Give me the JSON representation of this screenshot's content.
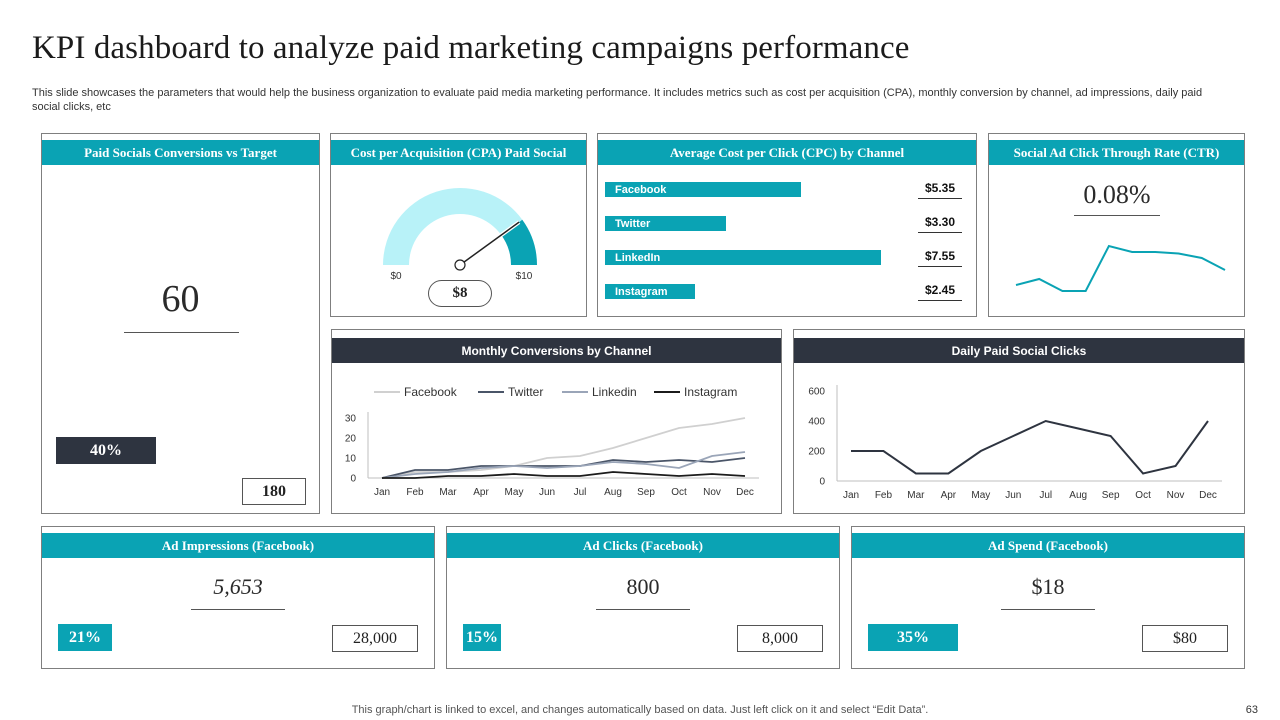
{
  "title": "KPI dashboard to analyze paid marketing campaigns performance",
  "subtitle": "This slide showcases the parameters that would help the business organization to evaluate paid media marketing performance. It includes metrics such as cost per acquisition (CPA), monthly conversion by channel, ad impressions, daily paid social clicks, etc",
  "colors": {
    "accent": "#0aa3b4",
    "dark": "#2e3440",
    "gauge_light": "#b8f2f8"
  },
  "conversions": {
    "title": "Paid Socials Conversions vs Target",
    "value": "60",
    "percent": "40%",
    "target": "180"
  },
  "cpa": {
    "title": "Cost per Acquisition (CPA) Paid Social",
    "min_label": "$0",
    "max_label": "$10",
    "value_label": "$8",
    "value": 8,
    "min": 0,
    "max": 10
  },
  "cpc": {
    "title": "Average Cost per Click (CPC) by Channel",
    "channels": [
      {
        "name": "Facebook",
        "value_label": "$5.35",
        "value": 5.35
      },
      {
        "name": "Twitter",
        "value_label": "$3.30",
        "value": 3.3
      },
      {
        "name": "LinkedIn",
        "value_label": "$7.55",
        "value": 7.55
      },
      {
        "name": "Instagram",
        "value_label": "$2.45",
        "value": 2.45
      }
    ]
  },
  "ctr": {
    "title": "Social Ad Click Through Rate (CTR)",
    "value": "0.08%"
  },
  "metrics": [
    {
      "title": "Ad Impressions (Facebook)",
      "value": "5,653",
      "percent": "21%",
      "target": "28,000"
    },
    {
      "title": "Ad Clicks (Facebook)",
      "value": "800",
      "percent": "15%",
      "target": "8,000"
    },
    {
      "title": "Ad Spend (Facebook)",
      "value": "$18",
      "percent": "35%",
      "target": "$80"
    }
  ],
  "footer": "This graph/chart is linked to excel,  and changes automatically based on data. Just left click on it and select “Edit Data”.",
  "page_number": "63",
  "chart_data": [
    {
      "type": "line",
      "title": "Monthly Conversions by Channel",
      "categories": [
        "Jan",
        "Feb",
        "Mar",
        "Apr",
        "May",
        "Jun",
        "Jul",
        "Aug",
        "Sep",
        "Oct",
        "Nov",
        "Dec"
      ],
      "yticks": [
        0,
        10,
        20,
        30
      ],
      "ylim": [
        0,
        30
      ],
      "legend": "top",
      "series": [
        {
          "name": "Facebook",
          "color": "#d0d0d0",
          "values": [
            0,
            3,
            3,
            4,
            6,
            10,
            11,
            15,
            20,
            25,
            27,
            30
          ]
        },
        {
          "name": "Twitter",
          "color": "#4a5568",
          "values": [
            0,
            4,
            4,
            6,
            6,
            6,
            6,
            9,
            8,
            9,
            8,
            10
          ]
        },
        {
          "name": "Linkedin",
          "color": "#9aa5b8",
          "values": [
            0,
            2,
            3,
            5,
            6,
            5,
            6,
            8,
            7,
            5,
            11,
            13
          ]
        },
        {
          "name": "Instagram",
          "color": "#1b1b1b",
          "values": [
            0,
            0,
            1,
            1,
            2,
            1,
            1,
            3,
            2,
            1,
            2,
            1
          ]
        }
      ]
    },
    {
      "type": "line",
      "title": "Daily Paid Social Clicks",
      "categories": [
        "Jan",
        "Feb",
        "Mar",
        "Apr",
        "May",
        "Jun",
        "Jul",
        "Aug",
        "Sep",
        "Oct",
        "Nov",
        "Dec"
      ],
      "yticks": [
        0,
        200,
        400,
        600
      ],
      "ylim": [
        0,
        600
      ],
      "series": [
        {
          "color": "#2e3440",
          "values": [
            200,
            200,
            50,
            50,
            200,
            300,
            400,
            350,
            300,
            50,
            100,
            400
          ]
        }
      ]
    },
    {
      "type": "line",
      "title": "Social Ad Click Through Rate (CTR)",
      "series": [
        {
          "color": "#0aa3b4",
          "values": [
            3,
            5,
            1,
            1,
            16,
            14,
            14,
            13.5,
            12,
            8
          ]
        }
      ]
    }
  ]
}
